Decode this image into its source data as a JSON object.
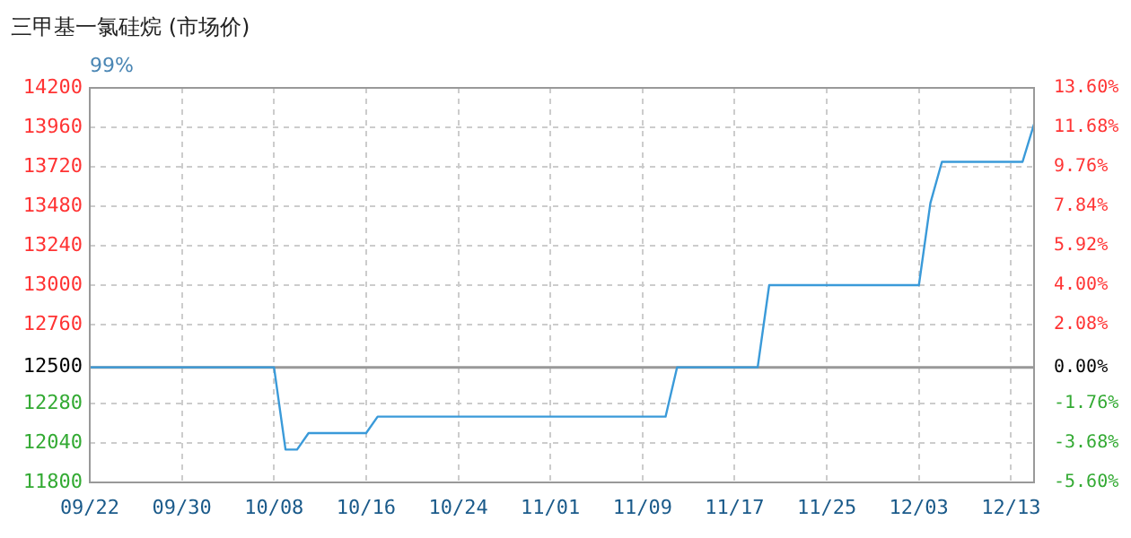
{
  "chart_data": {
    "type": "line",
    "title": "三甲基一氯硅烷 (市场价)",
    "subtitle": "99%",
    "categories": [
      "09/22",
      null,
      null,
      null,
      null,
      null,
      null,
      null,
      "09/30",
      null,
      null,
      null,
      null,
      null,
      null,
      null,
      "10/08",
      null,
      null,
      null,
      null,
      null,
      null,
      null,
      "10/16",
      null,
      null,
      null,
      null,
      null,
      null,
      null,
      "10/24",
      null,
      null,
      null,
      null,
      null,
      null,
      null,
      "11/01",
      null,
      null,
      null,
      null,
      null,
      null,
      null,
      "11/09",
      null,
      null,
      null,
      null,
      null,
      null,
      null,
      "11/17",
      null,
      null,
      null,
      null,
      null,
      null,
      null,
      "11/25",
      null,
      null,
      null,
      null,
      null,
      null,
      null,
      "12/03",
      null,
      null,
      null,
      null,
      null,
      null,
      null,
      "12/13",
      null,
      null
    ],
    "series": [
      {
        "color": "#3a9ad9",
        "values": [
          12500,
          12500,
          12500,
          12500,
          12500,
          12500,
          12500,
          12500,
          12500,
          12500,
          12500,
          12500,
          12500,
          12500,
          12500,
          12500,
          12500,
          12000,
          12000,
          12100,
          12100,
          12100,
          12100,
          12100,
          12100,
          12200,
          12200,
          12200,
          12200,
          12200,
          12200,
          12200,
          12200,
          12200,
          12200,
          12200,
          12200,
          12200,
          12200,
          12200,
          12200,
          12200,
          12200,
          12200,
          12200,
          12200,
          12200,
          12200,
          12200,
          12200,
          12200,
          12500,
          12500,
          12500,
          12500,
          12500,
          12500,
          12500,
          12500,
          13000,
          13000,
          13000,
          13000,
          13000,
          13000,
          13000,
          13000,
          13000,
          13000,
          13000,
          13000,
          13000,
          13000,
          13500,
          13750,
          13750,
          13750,
          13750,
          13750,
          13750,
          13750,
          13750,
          13980
        ]
      }
    ],
    "ylim": [
      11800,
      14200
    ],
    "yticks": [
      11800,
      12040,
      12280,
      12500,
      12760,
      13000,
      13240,
      13480,
      13720,
      13960,
      14200
    ],
    "y2lim": [
      -5.6,
      13.6
    ],
    "y2ticks": [
      {
        "value": -5.6,
        "label": "-5.60%"
      },
      {
        "value": -3.68,
        "label": "-3.68%"
      },
      {
        "value": -1.76,
        "label": "-1.76%"
      },
      {
        "value": 0,
        "label": "0.00%"
      },
      {
        "value": 2.08,
        "label": "2.08%"
      },
      {
        "value": 4,
        "label": "4.00%"
      },
      {
        "value": 5.92,
        "label": "5.92%"
      },
      {
        "value": 7.84,
        "label": "7.84%"
      },
      {
        "value": 9.76,
        "label": "9.76%"
      },
      {
        "value": 11.68,
        "label": "11.68%"
      },
      {
        "value": 13.6,
        "label": "13.60%"
      }
    ],
    "ref_lines": [
      {
        "axis": "y",
        "value": 12500,
        "color": "#999999"
      }
    ],
    "grid": true,
    "legend": false,
    "marker": "none"
  }
}
